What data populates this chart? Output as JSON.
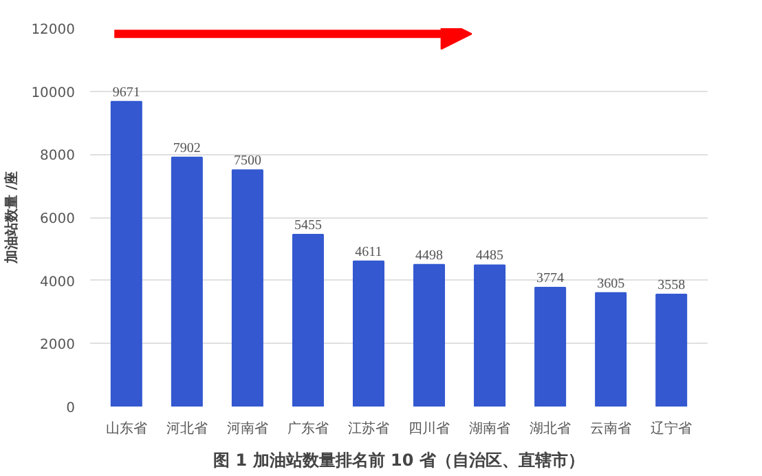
{
  "chart_data": {
    "type": "bar",
    "annotations": [
      "图 1 加油站数量排名前 10 省（自治区、直辖市）"
    ],
    "ylabel": "加油站数量 /座",
    "categories": [
      "山东省",
      "河北省",
      "河南省",
      "广东省",
      "江苏省",
      "四川省",
      "湖南省",
      "湖北省",
      "云南省",
      "辽宁省"
    ],
    "values": [
      9671,
      7902,
      7500,
      5455,
      4611,
      4498,
      4485,
      3774,
      3605,
      3558
    ],
    "color": "#3358d0",
    "ylim": [
      0,
      12000
    ],
    "yticks": [
      0,
      2000,
      4000,
      6000,
      8000,
      10000,
      12000
    ],
    "grid": "y",
    "data_labels": true
  }
}
